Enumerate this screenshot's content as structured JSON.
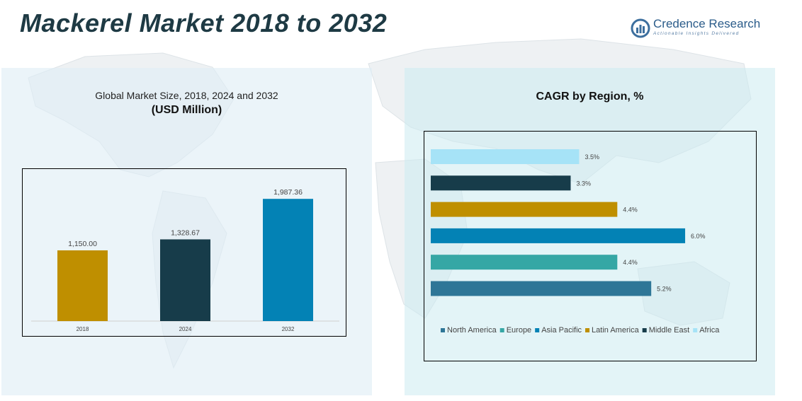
{
  "header": {
    "title": "Mackerel Market 2018 to 2032",
    "logo_name": "Credence Research",
    "logo_tagline": "Actionable Insights Delivered"
  },
  "left_panel": {
    "subtitle": "Global Market Size, 2018, 2024 and 2032",
    "unit": "(USD Million)"
  },
  "right_panel": {
    "title": "CAGR by Region, %"
  },
  "colors": {
    "title": "#1e3a44",
    "gold": "#bf8f00",
    "dark_teal": "#173c4a",
    "blue": "#0382b5",
    "teal": "#35a7a5",
    "steel": "#2e7697",
    "light_blue": "#a6e3f7"
  },
  "chart_data": [
    {
      "type": "bar",
      "categories": [
        "2018",
        "2024",
        "2032"
      ],
      "values": [
        1150.0,
        1328.67,
        1987.36
      ],
      "value_labels": [
        "1,150.00",
        "1,328.67",
        "1,987.36"
      ],
      "colors": [
        "#bf8f00",
        "#173c4a",
        "#0382b5"
      ],
      "ylim": [
        0,
        2300
      ]
    },
    {
      "type": "bar",
      "orientation": "horizontal",
      "categories": [
        "Africa",
        "Middle East",
        "Latin America",
        "Asia Pacific",
        "Europe",
        "North America"
      ],
      "values": [
        3.5,
        3.3,
        4.4,
        6.0,
        4.4,
        5.2
      ],
      "value_labels": [
        "3.5%",
        "3.3%",
        "4.4%",
        "6.0%",
        "4.4%",
        "5.2%"
      ],
      "colors": [
        "#a6e3f7",
        "#173c4a",
        "#bf8f00",
        "#0382b5",
        "#35a7a5",
        "#2e7697"
      ],
      "xlim": [
        0,
        6.35
      ],
      "legend": {
        "position": "bottom",
        "entries": [
          "North America",
          "Europe",
          "Asia Pacific",
          "Latin America",
          "Middle East",
          "Africa"
        ],
        "colors": [
          "#2e7697",
          "#35a7a5",
          "#0382b5",
          "#bf8f00",
          "#173c4a",
          "#a6e3f7"
        ]
      }
    }
  ]
}
